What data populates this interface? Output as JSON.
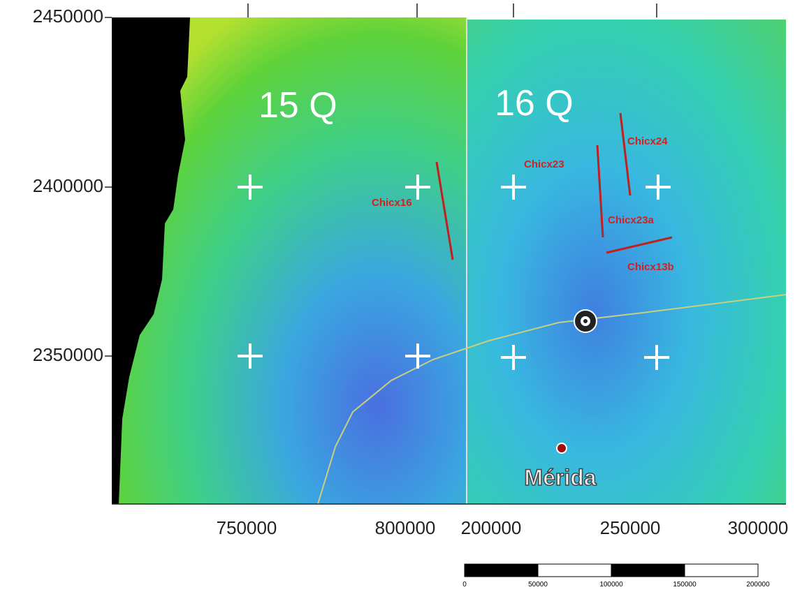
{
  "map": {
    "zones": [
      "15 Q",
      "16 Q"
    ],
    "y_axis_labels": [
      2450000,
      2400000,
      2350000
    ],
    "x_axis_labels_left": [
      750000,
      800000
    ],
    "x_axis_labels_right": [
      200000,
      250000,
      300000
    ],
    "profiles": [
      "Chicx16",
      "Chicx23",
      "Chicx24",
      "Chicx23a",
      "Chicx13b"
    ],
    "place": "Mérida",
    "scale_bar": [
      0,
      50000,
      100000,
      150000,
      200000
    ]
  }
}
